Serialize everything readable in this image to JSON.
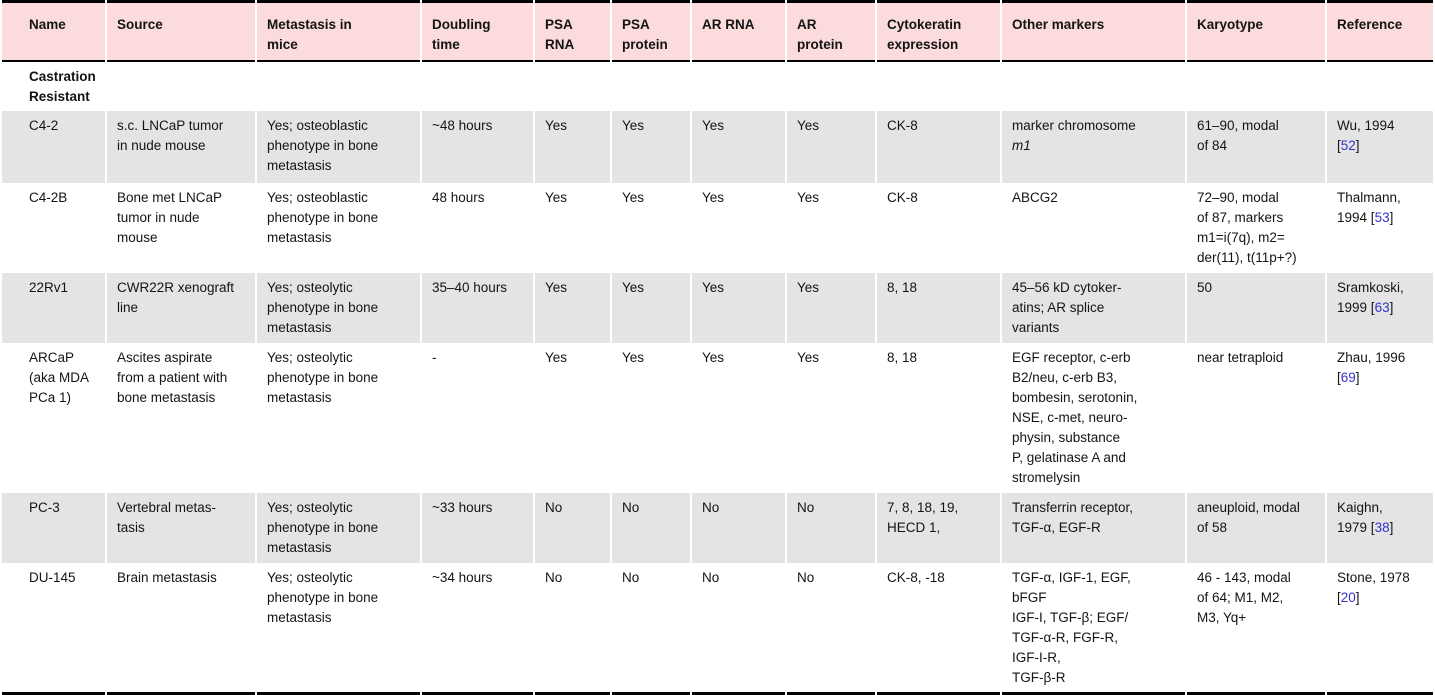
{
  "colors": {
    "header_bg": "#fbdbdb",
    "shaded_row_bg": "#e4e4e4",
    "border": "#000000",
    "link": "#3333cc",
    "text": "#141414"
  },
  "table": {
    "section_header": "Castration\nResistant",
    "reference_brackets": [
      "[",
      "]"
    ],
    "columns": [
      {
        "key": "name",
        "label": "Name"
      },
      {
        "key": "source",
        "label": "Source"
      },
      {
        "key": "metastasis",
        "label": "Metastasis in\nmice"
      },
      {
        "key": "doubling",
        "label": "Doubling\ntime"
      },
      {
        "key": "psa_rna",
        "label": "PSA\nRNA"
      },
      {
        "key": "psa_protein",
        "label": "PSA\nprotein"
      },
      {
        "key": "ar_rna",
        "label": "AR RNA"
      },
      {
        "key": "ar_protein",
        "label": "AR\nprotein"
      },
      {
        "key": "cytokeratin",
        "label": "Cytokeratin\nexpression"
      },
      {
        "key": "other_markers",
        "label": "Other markers"
      },
      {
        "key": "karyotype",
        "label": "Karyotype"
      },
      {
        "key": "reference",
        "label": "Reference"
      }
    ],
    "rows": [
      {
        "name": "C4-2",
        "source": "s.c. LNCaP tumor\nin nude mouse",
        "metastasis": "Yes; osteoblastic\nphenotype in bone\nmetastasis",
        "doubling": "~48 hours",
        "psa_rna": "Yes",
        "psa_protein": "Yes",
        "ar_rna": "Yes",
        "ar_protein": "Yes",
        "cytokeratin": "CK-8",
        "other_markers": "marker chromosome\n",
        "other_markers_italic": "m1",
        "karyotype": "61–90, modal\nof 84",
        "reference": {
          "pre": "Wu, 1994\n",
          "num": "52"
        }
      },
      {
        "name": "C4-2B",
        "source": "Bone met LNCaP\ntumor in nude\nmouse",
        "metastasis": "Yes; osteoblastic\nphenotype in bone\nmetastasis",
        "doubling": "48 hours",
        "psa_rna": "Yes",
        "psa_protein": "Yes",
        "ar_rna": "Yes",
        "ar_protein": "Yes",
        "cytokeratin": "CK-8",
        "other_markers": "ABCG2",
        "karyotype": "72–90, modal\nof 87, markers\nm1=i(7q), m2=\nder(11), t(11p+?)",
        "reference": {
          "pre": "Thalmann,\n1994 ",
          "num": "53"
        }
      },
      {
        "name": "22Rv1",
        "source": "CWR22R xenograft\nline",
        "metastasis": "Yes; osteolytic\nphenotype in bone\nmetastasis",
        "doubling": "35–40 hours",
        "psa_rna": "Yes",
        "psa_protein": "Yes",
        "ar_rna": "Yes",
        "ar_protein": "Yes",
        "cytokeratin": "8, 18",
        "other_markers": "45–56 kD cytoker-\natins; AR splice\nvariants",
        "karyotype": "50",
        "reference": {
          "pre": "Sramkoski,\n1999 ",
          "num": "63"
        }
      },
      {
        "name": "ARCaP\n(aka MDA\nPCa 1)",
        "source": "Ascites aspirate\nfrom a patient with\nbone metastasis",
        "metastasis": "Yes; osteolytic\nphenotype in bone\nmetastasis",
        "doubling": "-",
        "psa_rna": "Yes",
        "psa_protein": "Yes",
        "ar_rna": "Yes",
        "ar_protein": "Yes",
        "cytokeratin": "8, 18",
        "other_markers": "EGF receptor, c-erb\nB2/neu, c-erb B3,\nbombesin, serotonin,\nNSE, c-met, neuro-\nphysin, substance\nP, gelatinase A and\nstromelysin",
        "karyotype": "near tetraploid",
        "reference": {
          "pre": "Zhau, 1996\n",
          "num": "69"
        }
      },
      {
        "name": "PC-3",
        "source": "Vertebral metas-\ntasis",
        "metastasis": "Yes; osteolytic\nphenotype in bone\nmetastasis",
        "doubling": "~33 hours",
        "psa_rna": "No",
        "psa_protein": "No",
        "ar_rna": "No",
        "ar_protein": "No",
        "cytokeratin": "7, 8, 18, 19,\nHECD 1,",
        "other_markers": "Transferrin receptor,\nTGF-α, EGF-R",
        "karyotype": "aneuploid, modal\nof 58",
        "reference": {
          "pre": "Kaighn,\n1979 ",
          "num": "38"
        }
      },
      {
        "name": "DU-145",
        "source": "Brain metastasis",
        "metastasis": "Yes; osteolytic\nphenotype in bone\nmetastasis",
        "doubling": "~34 hours",
        "psa_rna": "No",
        "psa_protein": "No",
        "ar_rna": "No",
        "ar_protein": "No",
        "cytokeratin": "CK-8, -18",
        "other_markers": "TGF-α, IGF-1, EGF,\nbFGF\nIGF-I, TGF-β; EGF/\nTGF-α-R, FGF-R,\nIGF-I-R,\nTGF-β-R",
        "karyotype": "46 - 143, modal\nof 64; M1, M2,\nM3, Yq+",
        "reference": {
          "pre": "Stone, 1978\n",
          "num": "20"
        }
      }
    ]
  }
}
